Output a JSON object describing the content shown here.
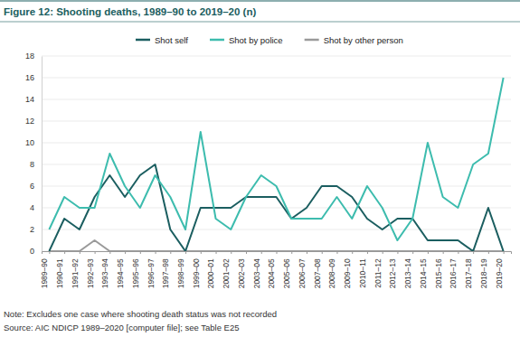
{
  "chart_data": {
    "type": "line",
    "title": "Figure 12: Shooting deaths, 1989–90 to 2019–20 (n)",
    "categories": [
      "1989–90",
      "1990–91",
      "1991–92",
      "1992–93",
      "1993–94",
      "1994–95",
      "1995–96",
      "1996–97",
      "1997–98",
      "1998–99",
      "1999–00",
      "2000–01",
      "2001–02",
      "2002–03",
      "2003–04",
      "2004–05",
      "2005–06",
      "2006–07",
      "2007–08",
      "2008–09",
      "2009–10",
      "2010–11",
      "2011–12",
      "2012–13",
      "2013–14",
      "2014–15",
      "2015–16",
      "2016–17",
      "2017–18",
      "2018–19",
      "2019–20"
    ],
    "series": [
      {
        "name": "Shot self",
        "color": "#1b5e60",
        "values": [
          0,
          3,
          2,
          5,
          7,
          5,
          7,
          8,
          2,
          0,
          4,
          4,
          4,
          5,
          5,
          5,
          3,
          4,
          6,
          6,
          5,
          3,
          2,
          3,
          3,
          1,
          1,
          1,
          0,
          4,
          0
        ]
      },
      {
        "name": "Shot by police",
        "color": "#3dbcae",
        "values": [
          2,
          5,
          4,
          4,
          9,
          6,
          4,
          7,
          5,
          2,
          11,
          3,
          2,
          5,
          7,
          6,
          3,
          3,
          3,
          5,
          3,
          6,
          4,
          1,
          3,
          10,
          5,
          4,
          8,
          9,
          16
        ]
      },
      {
        "name": "Shot by other person",
        "color": "#9a9a9a",
        "values": [
          0,
          0,
          0,
          1,
          0,
          0,
          0,
          0,
          0,
          0,
          0,
          0,
          0,
          0,
          0,
          0,
          0,
          0,
          0,
          0,
          0,
          0,
          0,
          0,
          0,
          0,
          0,
          0,
          0,
          0,
          0
        ]
      }
    ],
    "ylim": [
      0,
      18
    ],
    "yticks": [
      0,
      2,
      4,
      6,
      8,
      10,
      12,
      14,
      16,
      18
    ],
    "grid": true,
    "legend": "top",
    "notes": [
      "Note: Excludes one case where shooting death status was not recorded",
      "Source: AIC NDICP 1989–2020 [computer file]; see Table E25"
    ]
  }
}
